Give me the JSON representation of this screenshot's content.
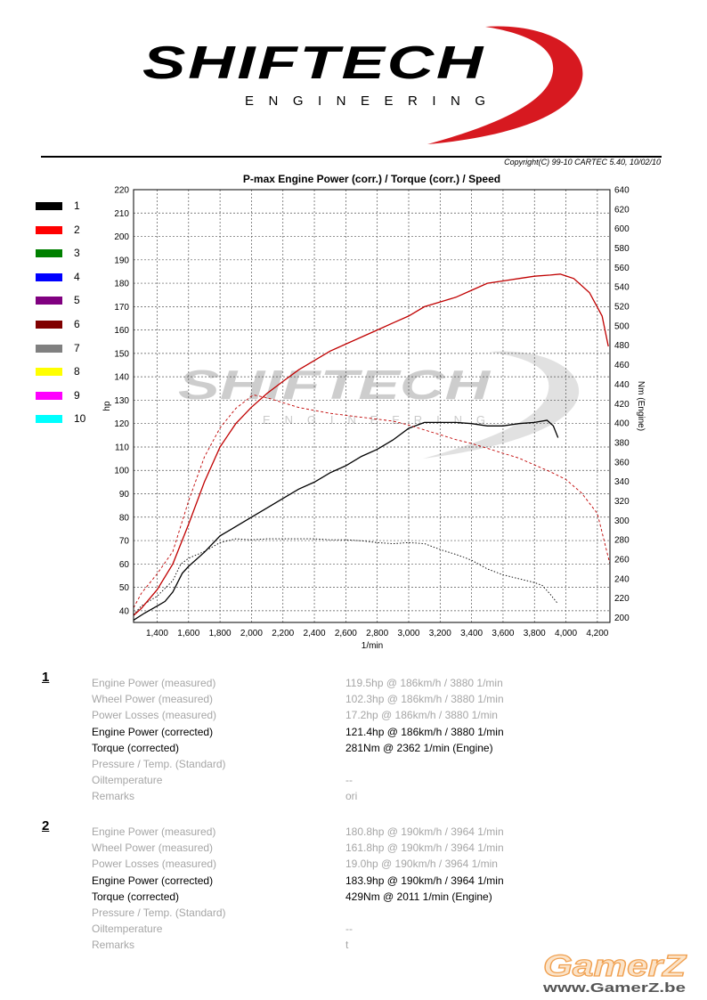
{
  "brand": {
    "name": "SHIFTECH",
    "subtitle": "ENGINEERING"
  },
  "copyright": "Copyright(C) 99-10 CARTEC 5.40, 10/02/10",
  "legend": [
    {
      "label": "1",
      "color": "#000000"
    },
    {
      "label": "2",
      "color": "#ff0000"
    },
    {
      "label": "3",
      "color": "#008000"
    },
    {
      "label": "4",
      "color": "#0000ff"
    },
    {
      "label": "5",
      "color": "#800080"
    },
    {
      "label": "6",
      "color": "#800000"
    },
    {
      "label": "7",
      "color": "#808080"
    },
    {
      "label": "8",
      "color": "#ffff00"
    },
    {
      "label": "9",
      "color": "#ff00ff"
    },
    {
      "label": "10",
      "color": "#00ffff"
    }
  ],
  "chart_data": {
    "type": "line",
    "title": "P-max Engine Power (corr.) / Torque (corr.) / Speed",
    "xlabel": "1/min",
    "ylabel": "hp",
    "y2label": "Nm (Engine)",
    "xlim": [
      1250,
      4280
    ],
    "ylim": [
      35,
      220
    ],
    "y2lim": [
      195,
      640
    ],
    "xticks": [
      1400,
      1600,
      1800,
      2000,
      2200,
      2400,
      2600,
      2800,
      3000,
      3200,
      3400,
      3600,
      3800,
      4000,
      4200
    ],
    "yticks": [
      40,
      50,
      60,
      70,
      80,
      90,
      100,
      110,
      120,
      130,
      140,
      150,
      160,
      170,
      180,
      190,
      200,
      210,
      220
    ],
    "y2ticks": [
      200,
      220,
      240,
      260,
      280,
      300,
      320,
      340,
      360,
      380,
      400,
      420,
      440,
      460,
      480,
      500,
      520,
      540,
      560,
      580,
      600,
      620,
      640
    ],
    "grid": true,
    "series": [
      {
        "name": "1",
        "measure": "power",
        "axis": "left",
        "color": "#000000",
        "style": "solid",
        "x": [
          1250,
          1320,
          1400,
          1450,
          1500,
          1560,
          1600,
          1700,
          1800,
          1900,
          2000,
          2100,
          2200,
          2300,
          2400,
          2500,
          2600,
          2700,
          2800,
          2900,
          3000,
          3100,
          3150,
          3200,
          3300,
          3400,
          3500,
          3600,
          3700,
          3800,
          3880,
          3920,
          3950
        ],
        "y": [
          36,
          39,
          42,
          44,
          48,
          56,
          59,
          65,
          72,
          76,
          80,
          84,
          88,
          92,
          95,
          99,
          102,
          106,
          109,
          113,
          118,
          120.5,
          120.5,
          120.5,
          120.5,
          120,
          119,
          119,
          120,
          120.5,
          121.4,
          119,
          114
        ]
      },
      {
        "name": "1",
        "measure": "torque",
        "axis": "right",
        "color": "#000000",
        "style": "dotted",
        "x": [
          1250,
          1300,
          1400,
          1500,
          1550,
          1600,
          1700,
          1800,
          1900,
          2000,
          2100,
          2200,
          2362,
          2400,
          2500,
          2600,
          2700,
          2800,
          2900,
          3000,
          3100,
          3200,
          3300,
          3400,
          3500,
          3600,
          3700,
          3800,
          3850,
          3900,
          3950
        ],
        "y": [
          203,
          212,
          222,
          238,
          255,
          261,
          268,
          277,
          281,
          280,
          281,
          281,
          281,
          281,
          280,
          280,
          279,
          277,
          276,
          277,
          276,
          270,
          265,
          259,
          250,
          244,
          240,
          236,
          233,
          224,
          214
        ]
      },
      {
        "name": "2",
        "measure": "power",
        "axis": "left",
        "color": "#c00000",
        "style": "solid",
        "x": [
          1250,
          1300,
          1400,
          1500,
          1600,
          1700,
          1800,
          1900,
          2000,
          2100,
          2200,
          2300,
          2400,
          2500,
          2600,
          2700,
          2800,
          2900,
          3000,
          3100,
          3200,
          3300,
          3400,
          3500,
          3600,
          3700,
          3800,
          3900,
          3964,
          4050,
          4150,
          4230,
          4270
        ],
        "y": [
          38,
          41,
          49,
          60,
          77,
          95,
          110,
          120,
          127,
          133,
          138,
          143,
          147,
          151,
          154,
          157,
          160,
          163,
          166,
          170,
          172,
          174,
          177,
          180,
          181,
          182,
          183,
          183.5,
          183.9,
          182,
          176,
          166,
          153
        ]
      },
      {
        "name": "2",
        "measure": "torque",
        "axis": "right",
        "color": "#c00000",
        "style": "dashed",
        "x": [
          1250,
          1300,
          1400,
          1500,
          1600,
          1700,
          1800,
          1900,
          2011,
          2100,
          2200,
          2300,
          2400,
          2500,
          2600,
          2700,
          2800,
          2900,
          3000,
          3100,
          3200,
          3300,
          3400,
          3500,
          3600,
          3700,
          3800,
          3900,
          4000,
          4100,
          4200,
          4280
        ],
        "y": [
          210,
          225,
          245,
          268,
          320,
          365,
          395,
          415,
          429,
          426,
          421,
          416,
          413,
          410,
          408,
          406,
          404,
          402,
          398,
          393,
          388,
          383,
          379,
          374,
          369,
          364,
          357,
          350,
          342,
          328,
          307,
          255
        ]
      }
    ]
  },
  "watermark": {
    "name": "SHIFTECH",
    "subtitle": "ENGINEERING"
  },
  "results": [
    {
      "number": "1",
      "rows": [
        {
          "label": "Engine Power (measured)",
          "value": "119.5hp @ 186km/h / 3880 1/min",
          "emphasis": false
        },
        {
          "label": "Wheel Power (measured)",
          "value": "102.3hp @ 186km/h / 3880 1/min",
          "emphasis": false
        },
        {
          "label": "Power Losses (measured)",
          "value": "17.2hp @ 186km/h / 3880 1/min",
          "emphasis": false
        },
        {
          "label": "Engine Power (corrected)",
          "value": "121.4hp @ 186km/h / 3880 1/min",
          "emphasis": true
        },
        {
          "label": "Torque (corrected)",
          "value": "281Nm @ 2362 1/min (Engine)",
          "emphasis": true
        },
        {
          "label": "Pressure / Temp. (Standard)",
          "value": "",
          "emphasis": false
        },
        {
          "label": "Oiltemperature",
          "value": "--",
          "emphasis": false
        },
        {
          "label": "Remarks",
          "value": "ori",
          "emphasis": false
        }
      ]
    },
    {
      "number": "2",
      "rows": [
        {
          "label": "Engine Power (measured)",
          "value": "180.8hp @ 190km/h / 3964 1/min",
          "emphasis": false
        },
        {
          "label": "Wheel Power (measured)",
          "value": "161.8hp @ 190km/h / 3964 1/min",
          "emphasis": false
        },
        {
          "label": "Power Losses (measured)",
          "value": "19.0hp @ 190km/h / 3964 1/min",
          "emphasis": false
        },
        {
          "label": "Engine Power (corrected)",
          "value": "183.9hp @ 190km/h / 3964 1/min",
          "emphasis": true
        },
        {
          "label": "Torque (corrected)",
          "value": "429Nm @ 2011 1/min (Engine)",
          "emphasis": true
        },
        {
          "label": "Pressure / Temp. (Standard)",
          "value": "",
          "emphasis": false
        },
        {
          "label": "Oiltemperature",
          "value": "--",
          "emphasis": false
        },
        {
          "label": "Remarks",
          "value": "t",
          "emphasis": false
        }
      ]
    }
  ],
  "footer": {
    "brand": "GamerZ",
    "url": "www.GamerZ.be"
  }
}
